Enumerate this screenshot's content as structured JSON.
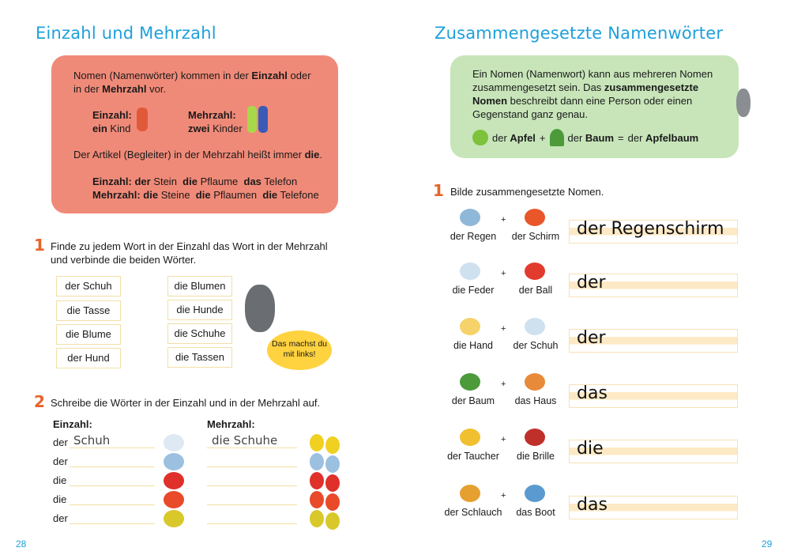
{
  "left": {
    "title": "Einzahl und Mehrzahl",
    "info": {
      "intro_pre": "Nomen (Namenwörter) kommen in der ",
      "intro_b1": "Einzahl",
      "intro_mid": " oder in der ",
      "intro_b2": "Mehrzahl",
      "intro_post": " vor.",
      "einzahl_label": "Einzahl:",
      "einzahl_article": "ein",
      "einzahl_noun": " Kind",
      "mehrzahl_label": "Mehrzahl:",
      "mehrzahl_article": "zwei",
      "mehrzahl_noun": " Kinder",
      "article_rule": "Der Artikel (Begleiter) in der Mehrzahl heißt immer ",
      "article_rule_b": "die",
      "ex1_label": "Einzahl: der",
      "ex1_a": " Stein ",
      "ex1_b": "die",
      "ex1_c": " Pflaume ",
      "ex1_d": "das",
      "ex1_e": " Telefon",
      "ex2_label": "Mehrzahl: die",
      "ex2_a": " Steine ",
      "ex2_b": "die",
      "ex2_c": " Pflaumen ",
      "ex2_d": "die",
      "ex2_e": " Telefone"
    },
    "task1": {
      "number": "1",
      "text": "Finde zu jedem Wort in der Einzahl das Wort in der Mehrzahl und verbinde die beiden Wörter.",
      "singular": [
        "der Schuh",
        "die Tasse",
        "die Blume",
        "der Hund"
      ],
      "plural": [
        "die Blumen",
        "die Hunde",
        "die Schuhe",
        "die Tassen"
      ],
      "bubble": "Das machst du mit links!"
    },
    "task2": {
      "number": "2",
      "text": "Schreibe die Wörter in der Einzahl und in der Mehrzahl auf.",
      "col1": "Einzahl:",
      "col2": "Mehrzahl:",
      "rows": [
        {
          "article": "der",
          "singular": "Schuh",
          "plural": "die Schuhe",
          "icon": "shoe"
        },
        {
          "article": "der",
          "singular": "",
          "plural": "",
          "icon": "fish"
        },
        {
          "article": "die",
          "singular": "",
          "plural": "",
          "icon": "tomato"
        },
        {
          "article": "die",
          "singular": "",
          "plural": "",
          "icon": "flower"
        },
        {
          "article": "der",
          "singular": "",
          "plural": "",
          "icon": "ring"
        }
      ]
    },
    "page_number": "28"
  },
  "right": {
    "title": "Zusammengesetzte Namenwörter",
    "info": {
      "p1": "Ein Nomen (Namenwort) kann aus mehreren Nomen zusammengesetzt sein. Das ",
      "b1": "zusammengesetzte Nomen",
      "p2": " beschreibt dann eine Person oder einen Gegenstand ganz genau.",
      "a1": "der ",
      "a1b": "Apfel",
      "plus": "+",
      "a2": "der ",
      "a2b": "Baum",
      "eq": "=",
      "a3": "der ",
      "a3b": "Apfelbaum"
    },
    "task1": {
      "number": "1",
      "text": "Bilde zusammengesetzte Nomen.",
      "rows": [
        {
          "w1": "der Regen",
          "w2": "der Schirm",
          "answer": "der Regenschirm",
          "c1": "#8fb8d8",
          "c2": "#e8562a"
        },
        {
          "w1": "die Feder",
          "w2": "der Ball",
          "answer": "der",
          "c1": "#cfe0ef",
          "c2": "#e23b2e"
        },
        {
          "w1": "die Hand",
          "w2": "der Schuh",
          "answer": "der",
          "c1": "#f5d36a",
          "c2": "#cfe0ef"
        },
        {
          "w1": "der Baum",
          "w2": "das Haus",
          "answer": "das",
          "c1": "#4c9a3a",
          "c2": "#e88a3a"
        },
        {
          "w1": "der Taucher",
          "w2": "die Brille",
          "answer": "die",
          "c1": "#f0c030",
          "c2": "#c0302a"
        },
        {
          "w1": "der Schlauch",
          "w2": "das Boot",
          "answer": "das",
          "c1": "#e6a030",
          "c2": "#5a9ad0"
        }
      ]
    },
    "page_number": "29"
  },
  "colors": {
    "title": "#1ea0dc",
    "number": "#e8632a",
    "red_box": "#f08a78",
    "green_box": "#c7e5b9"
  }
}
